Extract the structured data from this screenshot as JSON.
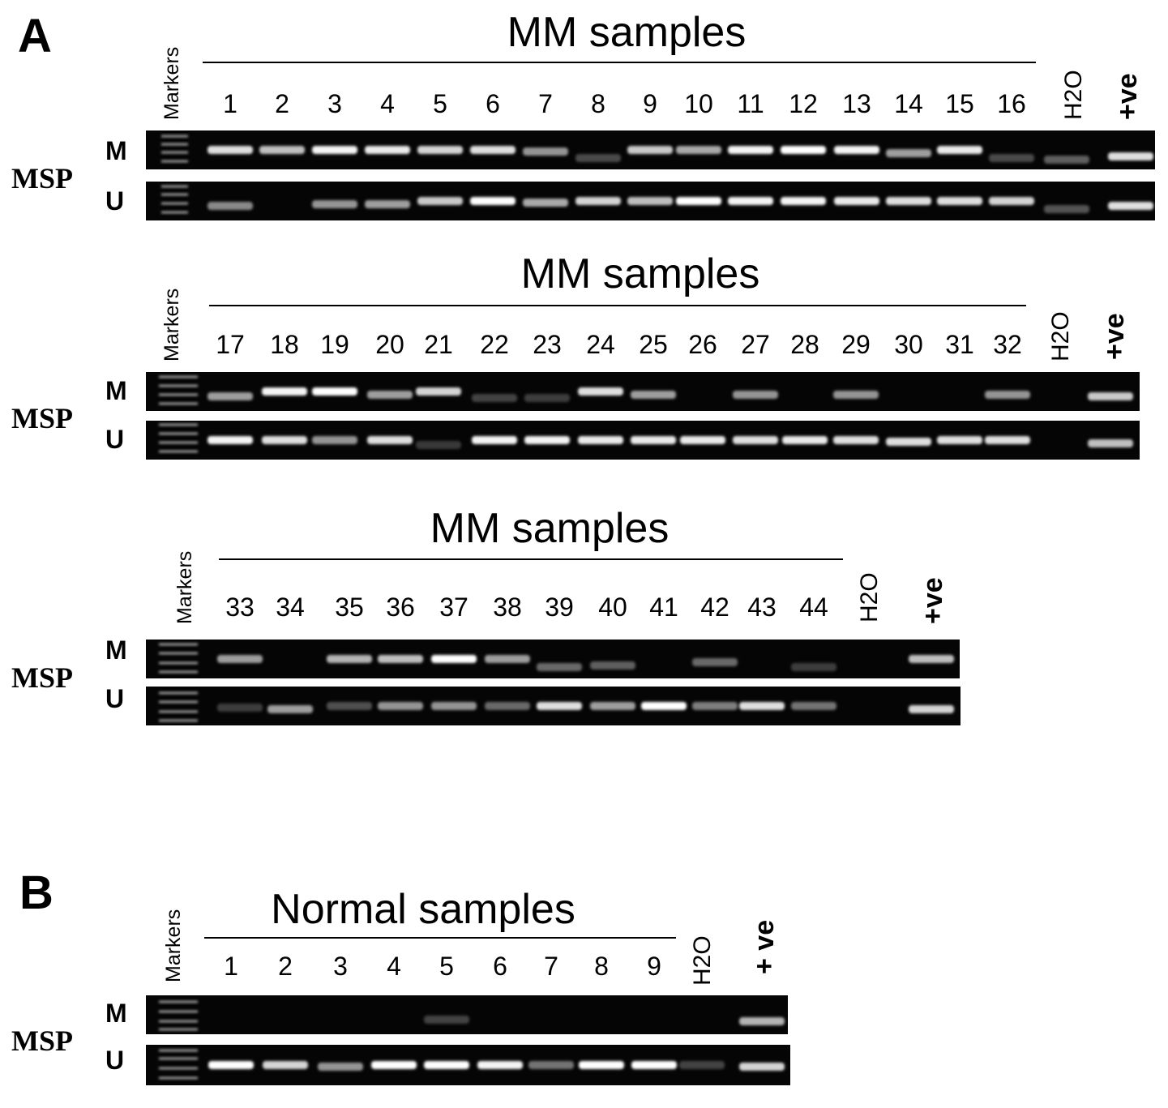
{
  "panel_a": {
    "letter": "A",
    "method_label": "MSP",
    "markers_label": "Markers",
    "rows": [
      {
        "title": "MM samples",
        "lanes": [
          "1",
          "2",
          "3",
          "4",
          "5",
          "6",
          "7",
          "8",
          "9",
          "10",
          "11",
          "12",
          "13",
          "14",
          "15",
          "16"
        ],
        "neg_label": "H2O",
        "pos_label": "+ve",
        "gel_labels": [
          "M",
          "U"
        ]
      },
      {
        "title": "MM samples",
        "lanes": [
          "17",
          "18",
          "19",
          "20",
          "21",
          "22",
          "23",
          "24",
          "25",
          "26",
          "27",
          "28",
          "29",
          "30",
          "31",
          "32"
        ],
        "neg_label": "H2O",
        "pos_label": "+ve",
        "gel_labels": [
          "M",
          "U"
        ]
      },
      {
        "title": "MM samples",
        "lanes": [
          "33",
          "34",
          "35",
          "36",
          "37",
          "38",
          "39",
          "40",
          "41",
          "42",
          "43",
          "44"
        ],
        "neg_label": "H2O",
        "pos_label": "+ve",
        "gel_labels": [
          "M",
          "U"
        ]
      }
    ]
  },
  "panel_b": {
    "letter": "B",
    "method_label": "MSP",
    "markers_label": "Markers",
    "title": "Normal samples",
    "lanes": [
      "1",
      "2",
      "3",
      "4",
      "5",
      "6",
      "7",
      "8",
      "9"
    ],
    "neg_label": "H2O",
    "pos_label": "+ ve",
    "gel_labels": [
      "M",
      "U"
    ]
  }
}
